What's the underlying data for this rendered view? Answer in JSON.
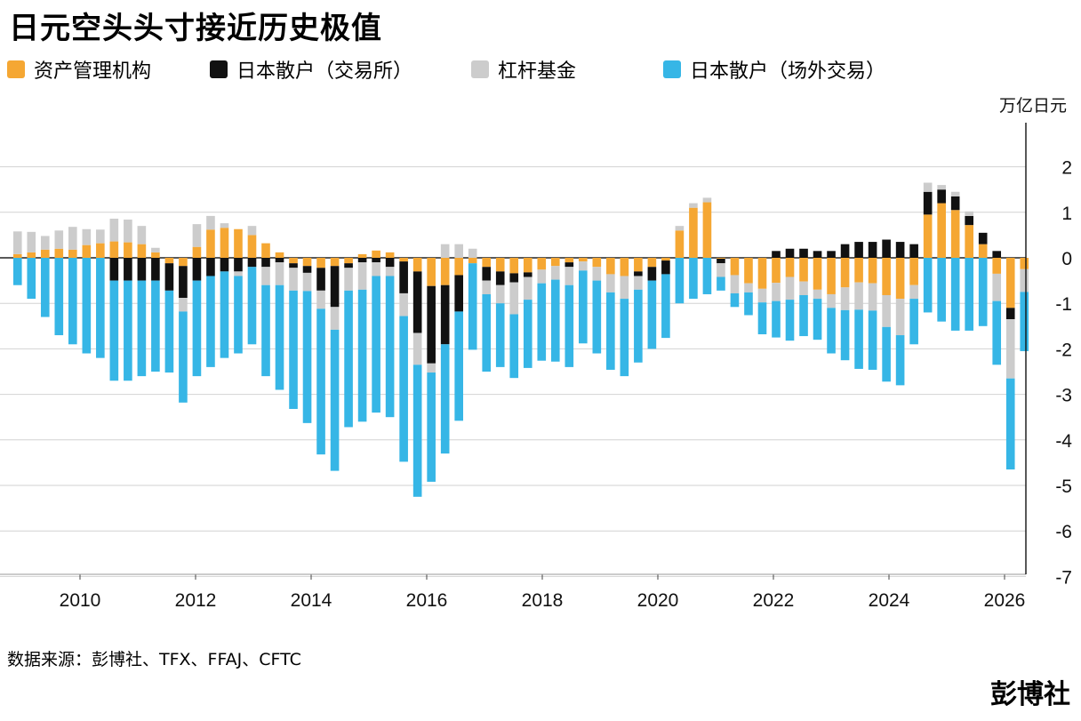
{
  "title": "日元空头头寸接近历史极值",
  "source": "数据来源：彭博社、TFX、FFAJ、CFTC",
  "brand": "彭博社",
  "chart_data": {
    "type": "stacked-bar",
    "unit_label": "万亿日元",
    "ylim": [
      -7,
      2
    ],
    "yticks": [
      2,
      1,
      0,
      -1,
      -2,
      -3,
      -4,
      -5,
      -6,
      -7
    ],
    "xlim": [
      2008.75,
      2026.75
    ],
    "xticks": [
      2010,
      2012,
      2014,
      2016,
      2018,
      2020,
      2022,
      2024,
      2026
    ],
    "grid": true,
    "legend_position": "top",
    "series": [
      {
        "name": "资产管理机构",
        "color": "#f5a733",
        "values": [
          0.08,
          0.12,
          0.18,
          0.2,
          0.18,
          0.28,
          0.32,
          0.36,
          0.34,
          0.3,
          0.12,
          -0.12,
          -0.18,
          0.24,
          0.62,
          0.66,
          0.63,
          0.5,
          0.32,
          0.12,
          -0.12,
          -0.18,
          -0.22,
          -0.18,
          -0.12,
          0.08,
          0.16,
          0.12,
          -0.08,
          -0.3,
          -0.62,
          -0.6,
          -0.38,
          -0.12,
          -0.2,
          -0.3,
          -0.34,
          -0.32,
          -0.26,
          -0.18,
          -0.1,
          -0.08,
          -0.2,
          -0.36,
          -0.4,
          -0.3,
          -0.2,
          -0.06,
          0.6,
          1.1,
          1.22,
          -0.02,
          -0.38,
          -0.56,
          -0.68,
          -0.55,
          -0.42,
          -0.52,
          -0.7,
          -0.8,
          -0.65,
          -0.54,
          -0.56,
          -0.82,
          -0.9,
          -0.6,
          0.95,
          1.2,
          1.05,
          0.72,
          0.3,
          -0.35,
          -1.1,
          -0.25
        ]
      },
      {
        "name": "日本散户（交易所）",
        "color": "#111111",
        "values": [
          0,
          0,
          0,
          0,
          0,
          0,
          0,
          -0.5,
          -0.5,
          -0.5,
          -0.5,
          -0.6,
          -0.7,
          -0.5,
          -0.4,
          -0.3,
          -0.3,
          -0.2,
          -0.2,
          -0.1,
          -0.1,
          -0.15,
          -0.5,
          -0.9,
          -0.1,
          -0.1,
          -0.1,
          -0.2,
          -0.7,
          -1.35,
          -1.7,
          -1.3,
          -0.8,
          0,
          -0.3,
          -0.3,
          -0.2,
          -0.1,
          0,
          0,
          -0.1,
          0,
          0,
          0,
          0,
          -0.1,
          -0.3,
          -0.3,
          0,
          0,
          0,
          -0.1,
          0,
          0,
          0,
          0.15,
          0.2,
          0.2,
          0.15,
          0.15,
          0.3,
          0.35,
          0.35,
          0.4,
          0.35,
          0.3,
          0.5,
          0.3,
          0.3,
          0.2,
          0.25,
          0.15,
          -0.25,
          0
        ]
      },
      {
        "name": "杠杆基金",
        "color": "#cccccc",
        "values": [
          0.5,
          0.45,
          0.3,
          0.4,
          0.5,
          0.35,
          0.3,
          0.5,
          0.5,
          0.4,
          0.1,
          0,
          -0.3,
          0.5,
          0.3,
          0.1,
          -0.1,
          0.2,
          -0.4,
          -0.5,
          -0.5,
          -0.4,
          -0.4,
          -0.5,
          -0.5,
          -0.6,
          -0.3,
          -0.2,
          -0.5,
          -0.7,
          -0.2,
          0.3,
          0.3,
          0.2,
          -0.3,
          -0.4,
          -0.7,
          -0.5,
          -0.3,
          -0.3,
          -0.4,
          -0.2,
          -0.3,
          -0.4,
          -0.5,
          -0.3,
          0,
          0,
          0.1,
          0.1,
          0.1,
          -0.3,
          -0.4,
          -0.2,
          -0.3,
          -0.4,
          -0.5,
          -0.3,
          -0.2,
          -0.3,
          -0.5,
          -0.6,
          -0.6,
          -0.7,
          -0.8,
          -0.3,
          0.2,
          0.1,
          0.1,
          0.1,
          0,
          -0.6,
          -1.3,
          -0.5
        ]
      },
      {
        "name": "日本散户（场外交易）",
        "color": "#36b6e6",
        "values": [
          -0.6,
          -0.9,
          -1.3,
          -1.7,
          -1.9,
          -2.1,
          -2.2,
          -2.2,
          -2.2,
          -2.1,
          -2.0,
          -1.8,
          -2.0,
          -2.1,
          -2.0,
          -1.9,
          -1.7,
          -1.7,
          -2.0,
          -2.3,
          -2.6,
          -2.9,
          -3.2,
          -3.1,
          -3.0,
          -2.9,
          -3.0,
          -3.1,
          -3.2,
          -2.9,
          -2.4,
          -2.4,
          -2.4,
          -1.9,
          -1.7,
          -1.4,
          -1.4,
          -1.5,
          -1.7,
          -1.8,
          -1.8,
          -1.6,
          -1.6,
          -1.7,
          -1.7,
          -1.6,
          -1.5,
          -1.4,
          -1.0,
          -0.9,
          -0.8,
          -0.3,
          -0.3,
          -0.5,
          -0.7,
          -0.8,
          -0.9,
          -0.9,
          -0.9,
          -1.0,
          -1.1,
          -1.3,
          -1.3,
          -1.2,
          -1.1,
          -1.0,
          -1.2,
          -1.4,
          -1.6,
          -1.6,
          -1.5,
          -1.4,
          -2.0,
          -1.3
        ]
      }
    ]
  }
}
